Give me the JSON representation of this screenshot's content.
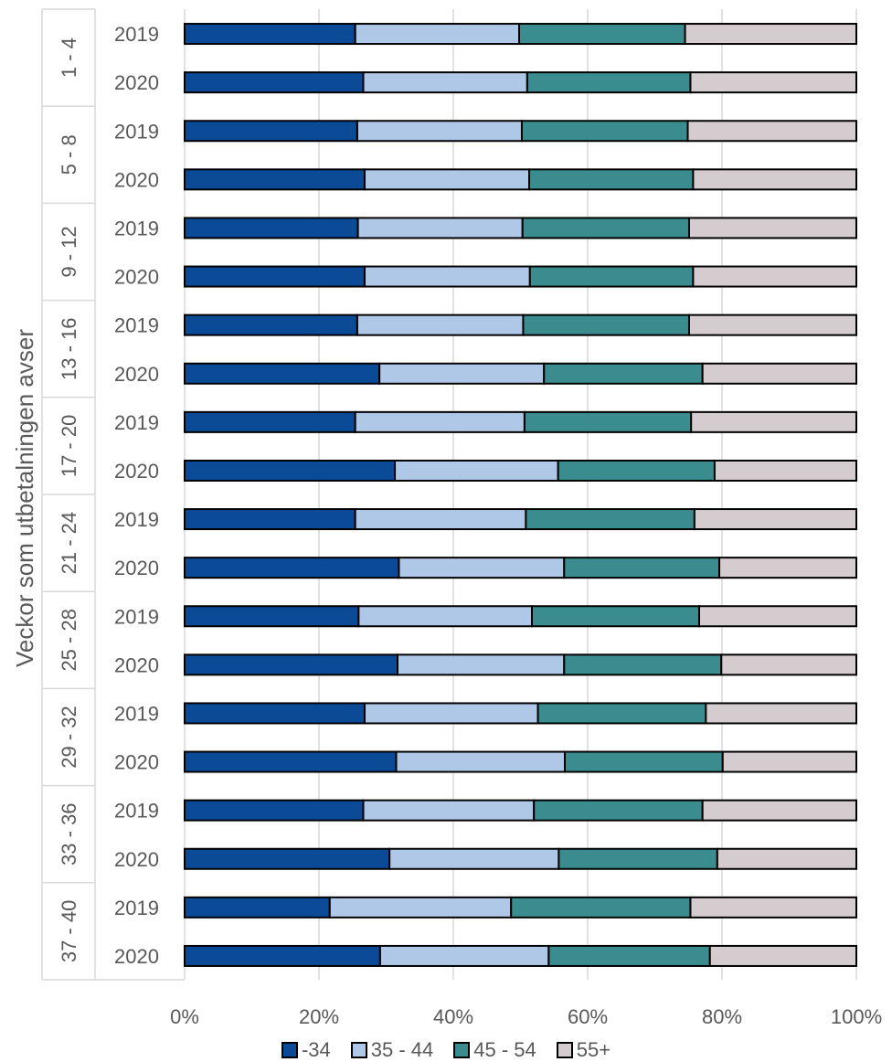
{
  "chart_data": {
    "type": "bar",
    "orientation": "horizontal",
    "stacked": "percent",
    "ylabel": "Veckor som utbetalningen avser",
    "xlabel": "",
    "xlim": [
      0,
      100
    ],
    "x_ticks": [
      "0%",
      "20%",
      "40%",
      "60%",
      "80%",
      "100%"
    ],
    "grid": "vertical",
    "legend_position": "bottom",
    "groups": [
      {
        "label": "1 - 4",
        "years": [
          "2019",
          "2020"
        ]
      },
      {
        "label": "5 - 8",
        "years": [
          "2019",
          "2020"
        ]
      },
      {
        "label": "9 - 12",
        "years": [
          "2019",
          "2020"
        ]
      },
      {
        "label": "13 - 16",
        "years": [
          "2019",
          "2020"
        ]
      },
      {
        "label": "17 - 20",
        "years": [
          "2019",
          "2020"
        ]
      },
      {
        "label": "21 - 24",
        "years": [
          "2019",
          "2020"
        ]
      },
      {
        "label": "25 - 28",
        "years": [
          "2019",
          "2020"
        ]
      },
      {
        "label": "29 - 32",
        "years": [
          "2019",
          "2020"
        ]
      },
      {
        "label": "33 - 36",
        "years": [
          "2019",
          "2020"
        ]
      },
      {
        "label": "37 - 40",
        "years": [
          "2019",
          "2020"
        ]
      }
    ],
    "series": [
      {
        "name": "-34",
        "color": "#0b4a97",
        "values": [
          25.4,
          26.6,
          25.7,
          26.8,
          25.8,
          26.8,
          25.7,
          29.0,
          25.4,
          31.3,
          25.4,
          31.9,
          25.9,
          31.7,
          26.8,
          31.5,
          26.6,
          30.5,
          21.6,
          29.1
        ]
      },
      {
        "name": "35 - 44",
        "color": "#b0c8e8",
        "values": [
          24.4,
          24.4,
          24.5,
          24.5,
          24.5,
          24.6,
          24.7,
          24.5,
          25.2,
          24.3,
          25.4,
          24.6,
          25.8,
          24.8,
          25.8,
          25.1,
          25.4,
          25.2,
          27.0,
          25.1
        ]
      },
      {
        "name": "45 - 54",
        "color": "#3b8c8f",
        "values": [
          24.7,
          24.3,
          24.7,
          24.4,
          24.8,
          24.3,
          24.7,
          23.6,
          24.8,
          23.3,
          25.1,
          23.1,
          24.9,
          23.4,
          25.0,
          23.5,
          25.1,
          23.6,
          26.7,
          24.0
        ]
      },
      {
        "name": "55+",
        "color": "#d4cccf",
        "values": [
          25.5,
          24.7,
          25.1,
          24.3,
          24.9,
          24.3,
          24.9,
          22.9,
          24.6,
          21.1,
          24.1,
          20.4,
          23.4,
          20.1,
          22.4,
          19.9,
          22.9,
          20.7,
          24.7,
          21.8
        ]
      }
    ]
  }
}
